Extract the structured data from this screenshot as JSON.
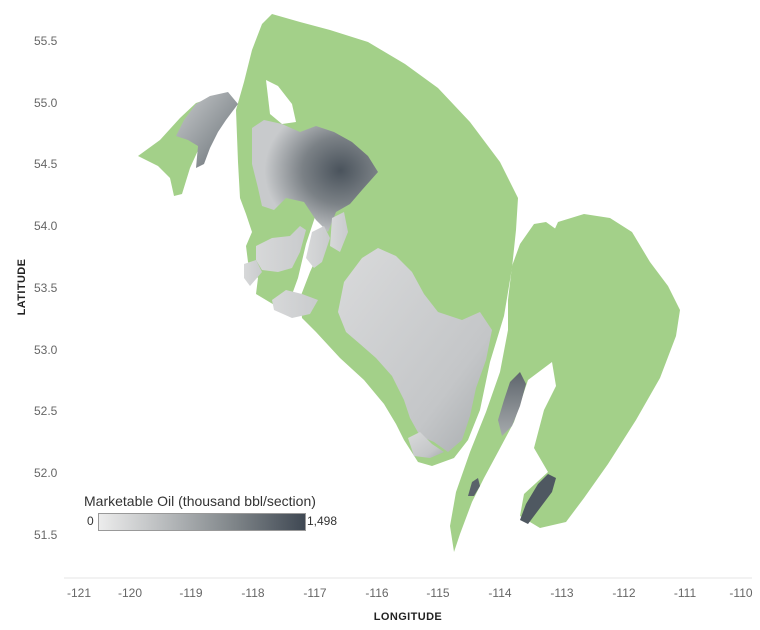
{
  "map": {
    "x_axis": {
      "title": "LONGITUDE",
      "ticks": [
        "-121",
        "-120",
        "-119",
        "-118",
        "-117",
        "-116",
        "-115",
        "-114",
        "-113",
        "-112",
        "-111",
        "-110"
      ]
    },
    "y_axis": {
      "title": "LATITUDE",
      "ticks": [
        "55.5",
        "55.0",
        "54.5",
        "54.0",
        "53.5",
        "53.0",
        "52.5",
        "52.0",
        "51.5"
      ]
    },
    "colors": {
      "region_fill": "#a3d089",
      "scale_low": "#ececec",
      "scale_high": "#3f4853"
    }
  },
  "legend": {
    "title": "Marketable Oil (thousand bbl/section)",
    "min_label": "0",
    "max_label": "1,498"
  }
}
